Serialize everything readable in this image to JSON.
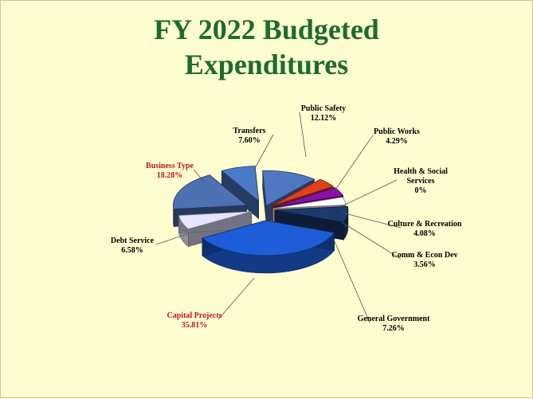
{
  "slide": {
    "title_line1": "FY 2022 Budgeted",
    "title_line2": "Expenditures",
    "title_color": "#1e6b2e",
    "background": "#fdfdd0"
  },
  "chart_data": {
    "type": "pie",
    "style": "3d-exploded",
    "title": "FY 2022 Budgeted Expenditures",
    "unit": "%",
    "slices": [
      {
        "label": "Public Safety",
        "value": 12.12,
        "value_text": "12.12%",
        "color": "#4f77c2",
        "label_color": "#000000"
      },
      {
        "label": "Public Works",
        "value": 4.29,
        "value_text": "4.29%",
        "color": "#e0401e",
        "label_color": "#000000"
      },
      {
        "label": "Health & Social Services",
        "value": 0,
        "value_text": "0%",
        "color": "#d8d8f0",
        "label_color": "#000000"
      },
      {
        "label": "Culture & Recreation",
        "value": 4.08,
        "value_text": "4.08%",
        "color": "#8a10a8",
        "label_color": "#000000"
      },
      {
        "label": "Comm & Econ Dev",
        "value": 3.56,
        "value_text": "3.56%",
        "color": "#ffffff",
        "label_color": "#000000"
      },
      {
        "label": "General Government",
        "value": 7.26,
        "value_text": "7.26%",
        "color": "#1c3a6e",
        "label_color": "#000000"
      },
      {
        "label": "Capital Projects",
        "value": 35.81,
        "value_text": "35.81%",
        "color": "#1d5ed8",
        "label_color": "#c0141c"
      },
      {
        "label": "Debt Service",
        "value": 6.58,
        "value_text": "6.58%",
        "color": "#e6e4ff",
        "label_color": "#000000"
      },
      {
        "label": "Business Type",
        "value": 18.28,
        "value_text": "18.28%",
        "color": "#4c72b4",
        "label_color": "#c0141c"
      },
      {
        "label": "Transfers",
        "value": 7.6,
        "value_text": "7.60%",
        "color": "#4a7ac8",
        "label_color": "#000000"
      }
    ]
  }
}
